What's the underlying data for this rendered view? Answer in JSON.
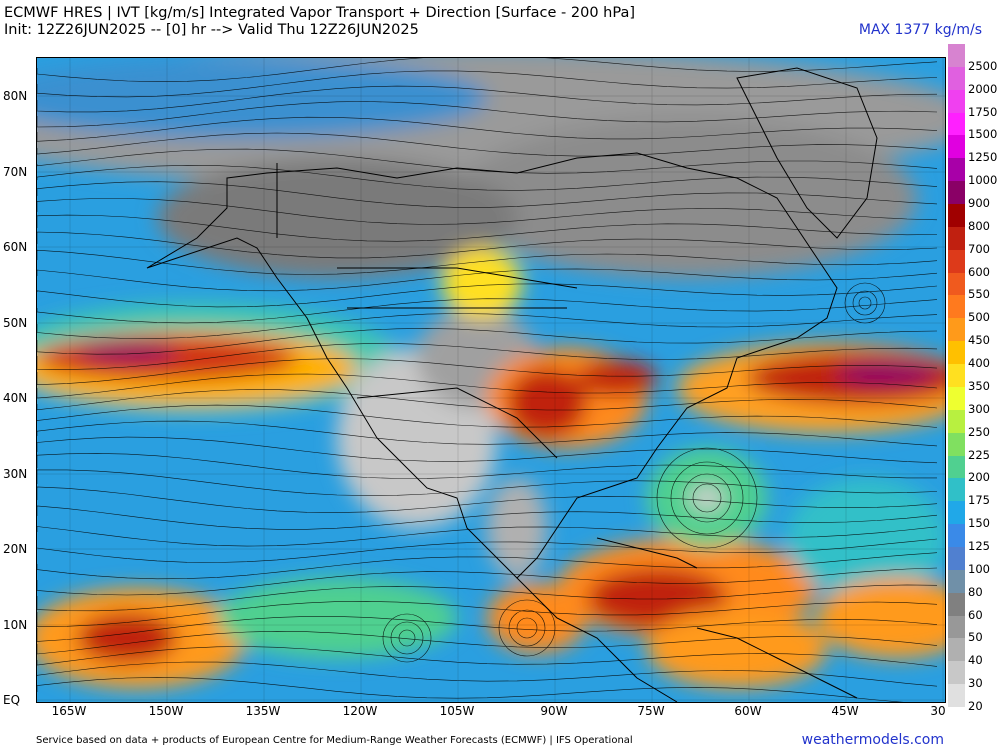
{
  "header": {
    "title_line1": "ECMWF HRES | IVT [kg/m/s] Integrated Vapor Transport + Direction [Surface - 200 hPa]",
    "title_line2": "Init: 12Z26JUN2025 -- [0] hr --> Valid Thu 12Z26JUN2025",
    "max_label": "MAX 1377 kg/m/s"
  },
  "map": {
    "lat_labels": [
      "80N",
      "70N",
      "60N",
      "50N",
      "40N",
      "30N",
      "20N",
      "10N",
      "EQ"
    ],
    "lon_labels": [
      "165W",
      "150W",
      "135W",
      "120W",
      "105W",
      "90W",
      "75W",
      "60W",
      "45W",
      "30"
    ],
    "lat_values": [
      80,
      70,
      60,
      50,
      40,
      30,
      20,
      10,
      0
    ],
    "lon_values": [
      -165,
      -150,
      -135,
      -120,
      -105,
      -90,
      -75,
      -60,
      -45,
      -30
    ]
  },
  "colorbar": {
    "levels": [
      "2500",
      "2000",
      "1750",
      "1500",
      "1250",
      "1000",
      "900",
      "800",
      "700",
      "600",
      "550",
      "500",
      "450",
      "400",
      "350",
      "300",
      "250",
      "225",
      "200",
      "175",
      "150",
      "125",
      "100",
      "80",
      "60",
      "50",
      "40",
      "30",
      "20"
    ],
    "colors": [
      "#d783d0",
      "#e060e0",
      "#f040f0",
      "#ff20ff",
      "#e000e0",
      "#a800a8",
      "#8a0066",
      "#a00000",
      "#c02010",
      "#dd3a1a",
      "#f05a1e",
      "#ff7a1e",
      "#ff9a1a",
      "#ffc000",
      "#ffe020",
      "#eeff30",
      "#b8f040",
      "#80e060",
      "#50d090",
      "#30c0c8",
      "#20a8e8",
      "#3a8ae8",
      "#5080d0",
      "#7090a8",
      "#808080",
      "#989898",
      "#b0b0b0",
      "#c8c8c8",
      "#e0e0e0"
    ]
  },
  "footer": {
    "credit": "Service based on data + products of European Centre for Medium-Range Weather Forecasts (ECMWF) | IFS Operational",
    "site": "weathermodels.com"
  }
}
